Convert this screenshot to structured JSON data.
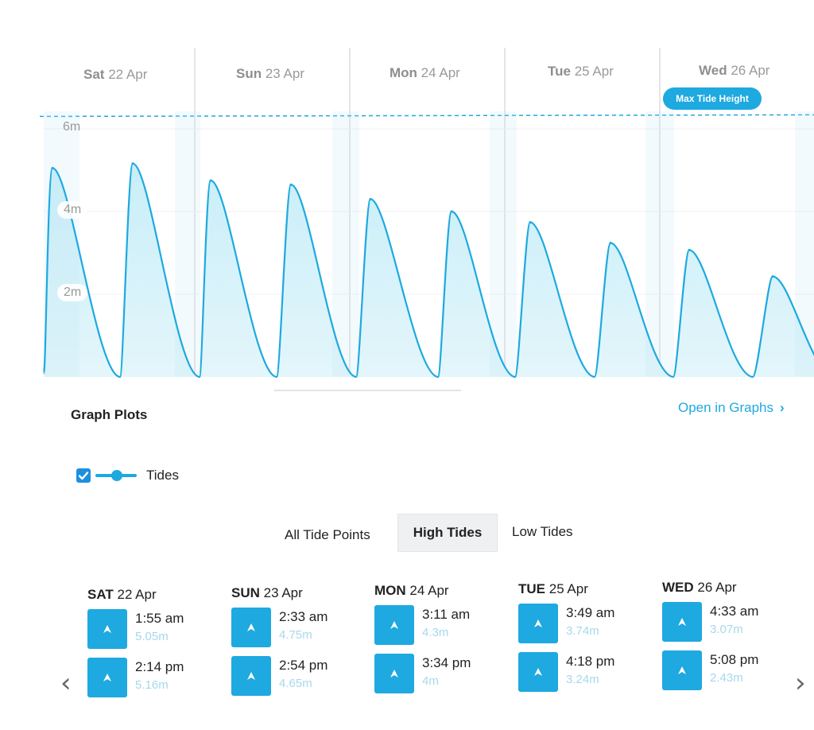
{
  "chart_data": {
    "type": "area",
    "x_days": [
      {
        "weekday": "Sat",
        "date": "22 Apr"
      },
      {
        "weekday": "Sun",
        "date": "23 Apr"
      },
      {
        "weekday": "Mon",
        "date": "24 Apr"
      },
      {
        "weekday": "Tue",
        "date": "25 Apr"
      },
      {
        "weekday": "Wed",
        "date": "26 Apr"
      }
    ],
    "y_ticks": [
      "6m",
      "4m",
      "2m"
    ],
    "y_tick_values": [
      6,
      4,
      2
    ],
    "ylim": [
      0,
      7
    ],
    "max_line_value": 6.3,
    "max_line_label": "Max Tide Height",
    "high_tides": [
      {
        "time": "22 Apr 1:55 am",
        "height": 5.05
      },
      {
        "time": "22 Apr 2:14 pm",
        "height": 5.16
      },
      {
        "time": "23 Apr 2:33 am",
        "height": 4.75
      },
      {
        "time": "23 Apr 2:54 pm",
        "height": 4.65
      },
      {
        "time": "24 Apr 3:11 am",
        "height": 4.3
      },
      {
        "time": "24 Apr 3:34 pm",
        "height": 4.0
      },
      {
        "time": "25 Apr 3:49 am",
        "height": 3.74
      },
      {
        "time": "25 Apr 4:18 pm",
        "height": 3.24
      },
      {
        "time": "26 Apr 4:33 am",
        "height": 3.07
      },
      {
        "time": "26 Apr 5:08 pm",
        "height": 2.43
      }
    ],
    "low_tide_value": 0.0,
    "grid": true,
    "series": [
      {
        "name": "Tides",
        "color": "#1ea9e0",
        "fill": "#d9f3fa"
      }
    ]
  },
  "graph_plots": {
    "title": "Graph Plots",
    "open_link": "Open in Graphs",
    "open_link_chevron": "›",
    "legend_label": "Tides"
  },
  "tabs": {
    "all": "All Tide Points",
    "high": "High Tides",
    "low": "Low Tides",
    "selected": "high"
  },
  "tide_days": [
    {
      "weekday": "SAT",
      "date": "22 Apr",
      "tides": [
        {
          "time": "1:55 am",
          "height": "5.05m"
        },
        {
          "time": "2:14 pm",
          "height": "5.16m"
        }
      ]
    },
    {
      "weekday": "SUN",
      "date": "23 Apr",
      "tides": [
        {
          "time": "2:33 am",
          "height": "4.75m"
        },
        {
          "time": "2:54 pm",
          "height": "4.65m"
        }
      ]
    },
    {
      "weekday": "MON",
      "date": "24 Apr",
      "tides": [
        {
          "time": "3:11 am",
          "height": "4.3m"
        },
        {
          "time": "3:34 pm",
          "height": "4m"
        }
      ]
    },
    {
      "weekday": "TUE",
      "date": "25 Apr",
      "tides": [
        {
          "time": "3:49 am",
          "height": "3.74m"
        },
        {
          "time": "4:18 pm",
          "height": "3.24m"
        }
      ]
    },
    {
      "weekday": "WED",
      "date": "26 Apr",
      "tides": [
        {
          "time": "4:33 am",
          "height": "3.07m"
        },
        {
          "time": "5:08 pm",
          "height": "2.43m"
        }
      ]
    }
  ],
  "nav": {
    "prev": "‹",
    "next": "›"
  },
  "colors": {
    "accent": "#1ea9e0",
    "tab_selected_bg": "#eef0f1",
    "height_text": "#a6d8ec"
  },
  "icons": {
    "tide_tile": "arrow-up-icon",
    "checkbox": "check-icon"
  }
}
